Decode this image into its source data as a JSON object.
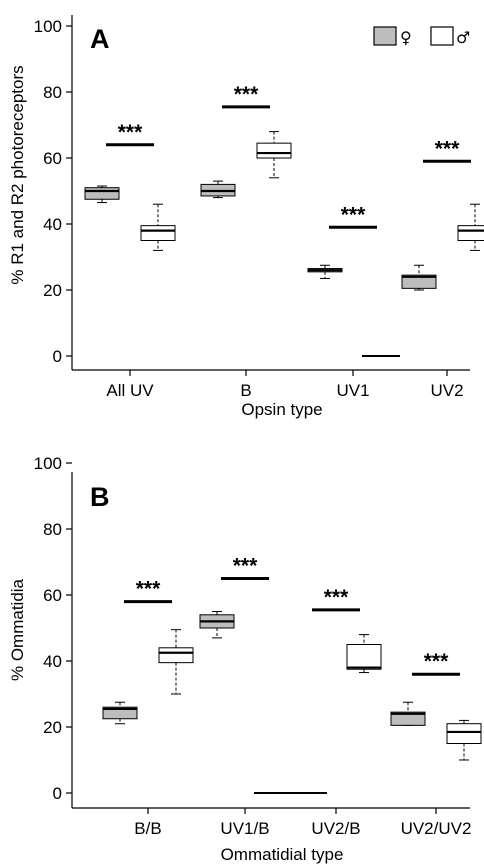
{
  "legend": {
    "female": {
      "symbol": "♀",
      "fill": "#bdbdbd"
    },
    "male": {
      "symbol": "♂",
      "fill": "#ffffff"
    }
  },
  "significance_label": "***",
  "chart_data": [
    {
      "type": "box",
      "panel": "A",
      "xlabel": "Opsin type",
      "ylabel": "% R1 and R2 photoreceptors",
      "ylim": [
        0,
        100
      ],
      "yticks": [
        0,
        20,
        40,
        60,
        80,
        100
      ],
      "grid": false,
      "legend_position": "top-right",
      "categories": [
        "All UV",
        "B",
        "UV1",
        "UV2"
      ],
      "series": [
        {
          "key": "female",
          "boxes": [
            {
              "min": 46.5,
              "q1": 47.5,
              "median": 50,
              "q3": 51,
              "max": 51.5
            },
            {
              "min": 48,
              "q1": 48.5,
              "median": 50,
              "q3": 52,
              "max": 53
            },
            {
              "min": 23.5,
              "q1": 25.5,
              "median": 26,
              "q3": 26.5,
              "max": 27.5
            },
            {
              "min": 20,
              "q1": 20.5,
              "median": 24,
              "q3": 24.5,
              "max": 27.5
            }
          ]
        },
        {
          "key": "male",
          "boxes": [
            {
              "min": 32,
              "q1": 35,
              "median": 38,
              "q3": 39.5,
              "max": 46
            },
            {
              "min": 54,
              "q1": 60,
              "median": 61.5,
              "q3": 64.5,
              "max": 68
            },
            {
              "min": 0,
              "q1": 0,
              "median": 0,
              "q3": 0,
              "max": 0
            },
            {
              "min": 32,
              "q1": 35,
              "median": 38,
              "q3": 39.5,
              "max": 46
            }
          ]
        }
      ],
      "significance": [
        {
          "category": "All UV",
          "y": 64
        },
        {
          "category": "B",
          "y": 75.5
        },
        {
          "category": "UV1",
          "y": 39
        },
        {
          "category": "UV2",
          "y": 59
        }
      ]
    },
    {
      "type": "box",
      "panel": "B",
      "xlabel": "Ommatidial type",
      "ylabel": "% Ommatidia",
      "ylim": [
        0,
        100
      ],
      "yticks": [
        0,
        20,
        40,
        60,
        80,
        100
      ],
      "grid": false,
      "categories": [
        "B/B",
        "UV1/B",
        "UV2/B",
        "UV2/UV2"
      ],
      "series": [
        {
          "key": "female",
          "boxes": [
            {
              "min": 21,
              "q1": 22.5,
              "median": 25.5,
              "q3": 26,
              "max": 27.5
            },
            {
              "min": 47,
              "q1": 50,
              "median": 52,
              "q3": 54,
              "max": 55
            },
            {
              "min": 0,
              "q1": 0,
              "median": 0,
              "q3": 0,
              "max": 0
            },
            {
              "min": 20.5,
              "q1": 20.5,
              "median": 24,
              "q3": 24.5,
              "max": 27.5
            }
          ]
        },
        {
          "key": "male",
          "boxes": [
            {
              "min": 30,
              "q1": 39.5,
              "median": 42.5,
              "q3": 44,
              "max": 49.5
            },
            {
              "min": 0,
              "q1": 0,
              "median": 0,
              "q3": 0,
              "max": 0
            },
            {
              "min": 36.5,
              "q1": 37.5,
              "median": 38,
              "q3": 45,
              "max": 48
            },
            {
              "min": 10,
              "q1": 15,
              "median": 18.5,
              "q3": 21,
              "max": 22
            }
          ]
        }
      ],
      "significance": [
        {
          "category": "B/B",
          "y": 58
        },
        {
          "category": "UV1/B",
          "y": 65
        },
        {
          "category": "UV2/B",
          "y": 55.5
        },
        {
          "category": "UV2/UV2",
          "y": 36
        }
      ]
    }
  ]
}
